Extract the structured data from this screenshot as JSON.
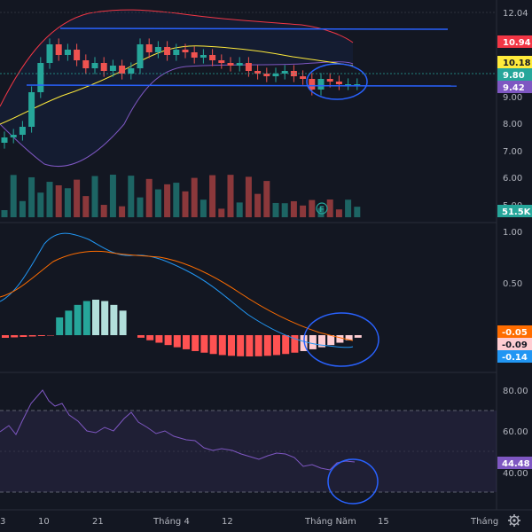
{
  "price_axis": {
    "ticks": [
      {
        "label": "12.04",
        "value": 12.04
      },
      {
        "label": "9.00",
        "value": 9.0
      },
      {
        "label": "8.00",
        "value": 8.0
      },
      {
        "label": "7.00",
        "value": 7.0
      },
      {
        "label": "6.00",
        "value": 6.0
      },
      {
        "label": "5.00",
        "value": 5.0
      }
    ],
    "badges": [
      {
        "label": "10.94",
        "value": 10.94,
        "bg": "#f23645",
        "fg": "#ffffff"
      },
      {
        "label": "10.18",
        "value": 10.18,
        "bg": "#ffeb3b",
        "fg": "#131722"
      },
      {
        "label": "9.80",
        "value": 9.8,
        "bg": "#26a69a",
        "fg": "#ffffff"
      },
      {
        "label": "9.42",
        "value": 9.42,
        "bg": "#7e57c2",
        "fg": "#ffffff"
      }
    ],
    "volume_badge": {
      "label": "51.5K",
      "bg": "#26a69a",
      "fg": "#ffffff"
    }
  },
  "macd_axis": {
    "ticks": [
      {
        "label": "1.00",
        "value": 1.0
      },
      {
        "label": "0.50",
        "value": 0.5
      }
    ],
    "badges": [
      {
        "label": "-0.05",
        "value": -0.05,
        "bg": "#ff6d00",
        "fg": "#ffffff"
      },
      {
        "label": "-0.09",
        "value": -0.09,
        "bg": "#ffcdd2",
        "fg": "#131722"
      },
      {
        "label": "-0.14",
        "value": -0.14,
        "bg": "#2196f3",
        "fg": "#ffffff"
      }
    ]
  },
  "rsi_axis": {
    "ticks": [
      {
        "label": "80.00",
        "value": 80
      },
      {
        "label": "60.00",
        "value": 60
      },
      {
        "label": "40.00",
        "value": 40
      }
    ],
    "badge": {
      "label": "44.48",
      "value": 44.48,
      "bg": "#7e57c2",
      "fg": "#ffffff"
    }
  },
  "time_axis": {
    "labels": [
      "3",
      "10",
      "21",
      "Tháng 4",
      "12",
      "Tháng Năm",
      "15",
      "Tháng"
    ]
  },
  "flag_marker": {
    "label": "F",
    "color": "#26a69a"
  },
  "colors": {
    "up": "#26a69a",
    "down": "#ef5350",
    "bb_upper": "#f23645",
    "bb_lower": "#7e57c2",
    "bb_mid": "#ffeb3b",
    "macd_line": "#2196f3",
    "signal_line": "#ff6d00",
    "rsi_line": "#7e57c2",
    "drawing": "#2962ff"
  },
  "chart_data": {
    "type": "line",
    "candles_close": [
      7.8,
      7.9,
      8.2,
      9.5,
      10.6,
      11.3,
      10.9,
      11.1,
      10.7,
      10.4,
      10.6,
      10.3,
      10.5,
      10.2,
      10.4,
      11.3,
      11.0,
      11.2,
      10.9,
      11.1,
      11.0,
      10.8,
      10.9,
      10.7,
      10.6,
      10.5,
      10.6,
      10.3,
      10.2,
      10.1,
      10.2,
      10.3,
      10.1,
      10.0,
      9.6,
      10.0,
      9.9,
      9.8,
      9.8,
      9.8
    ],
    "macd": [
      0.1,
      0.2,
      0.4,
      0.6,
      0.8,
      0.95,
      0.9,
      0.85,
      0.8,
      0.75,
      0.72,
      0.75,
      0.7,
      0.65,
      0.6,
      0.5,
      0.4,
      0.3,
      0.2,
      0.1,
      0.0,
      -0.05,
      -0.1,
      -0.14
    ],
    "signal": [
      0.05,
      0.1,
      0.2,
      0.35,
      0.5,
      0.65,
      0.75,
      0.78,
      0.78,
      0.76,
      0.75,
      0.74,
      0.72,
      0.68,
      0.62,
      0.55,
      0.47,
      0.38,
      0.29,
      0.2,
      0.12,
      0.05,
      -0.01,
      -0.05
    ],
    "rsi": [
      65,
      70,
      78,
      80,
      75,
      72,
      65,
      62,
      60,
      63,
      70,
      65,
      60,
      58,
      55,
      52,
      50,
      48,
      47,
      45,
      43,
      42,
      44,
      44.48
    ],
    "ylim_price": [
      4.8,
      12.5
    ],
    "ylim_macd": [
      -0.25,
      1.05
    ],
    "ylim_rsi": [
      25,
      88
    ]
  }
}
